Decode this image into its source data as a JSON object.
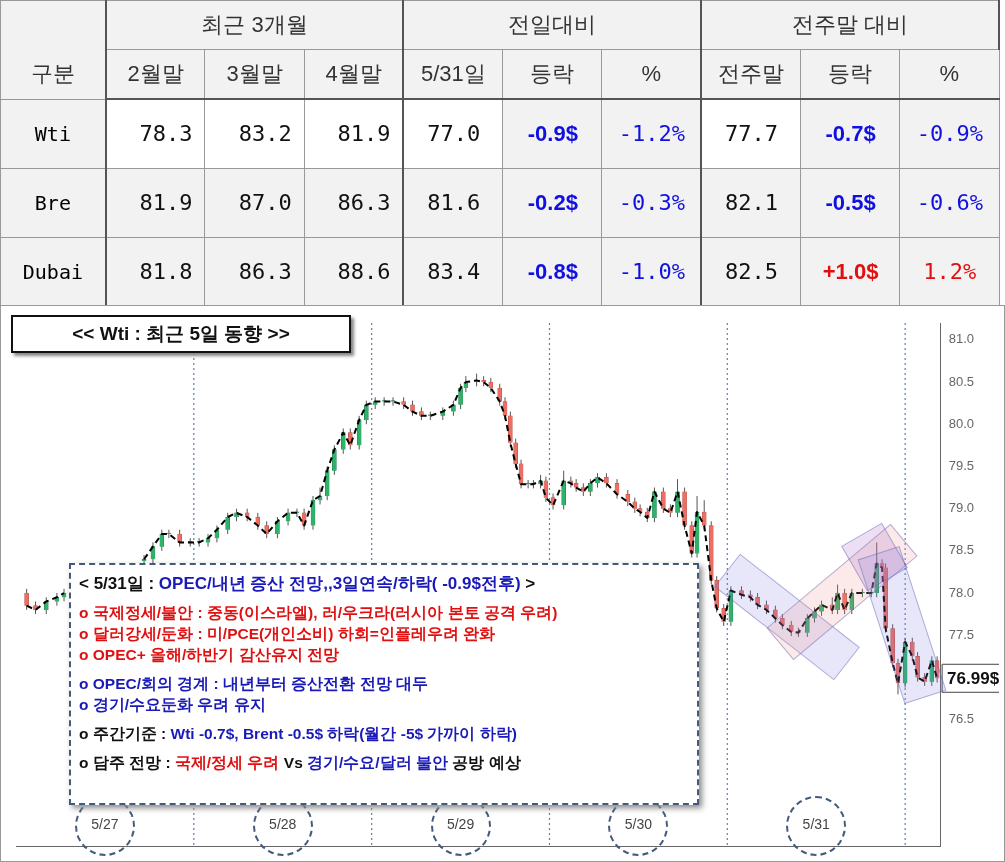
{
  "chart_data": [
    {
      "type": "heatmap",
      "ylabel": "구분",
      "annotations": [
        "최근 3개월",
        "전일대비",
        "전주말 대비"
      ],
      "categories": [
        "2월말",
        "3월말",
        "4월말",
        "5/31일",
        "등락",
        "%",
        "전주말",
        "등락",
        "%"
      ],
      "y_categories": [
        "Wti",
        "Bre",
        "Dubai"
      ],
      "cells": [
        [
          78.3,
          83.2,
          81.9,
          77.0,
          -0.9,
          -1.2,
          77.7,
          -0.7,
          -0.9
        ],
        [
          81.9,
          87.0,
          86.3,
          81.6,
          -0.2,
          -0.3,
          82.1,
          -0.5,
          -0.6
        ],
        [
          81.8,
          86.3,
          88.6,
          83.4,
          -0.8,
          -1.0,
          82.5,
          1.0,
          1.2
        ]
      ],
      "cell_labels": [
        [
          "78.3",
          "83.2",
          "81.9",
          "77.0",
          "-0.9$",
          "-1.2%",
          "77.7",
          "-0.7$",
          "-0.9%"
        ],
        [
          "81.9",
          "87.0",
          "86.3",
          "81.6",
          "-0.2$",
          "-0.3%",
          "82.1",
          "-0.5$",
          "-0.6%"
        ],
        [
          "81.8",
          "86.3",
          "88.6",
          "83.4",
          "-0.8$",
          "-1.0%",
          "82.5",
          "+1.0$",
          "1.2%"
        ]
      ]
    },
    {
      "type": "candlestick",
      "title": "<< Wti : 최근 5일 동향 >>",
      "marker": "none",
      "grid": false,
      "legend": false,
      "xlim": [
        "--05-27T00:00",
        "--06-01T04:48"
      ],
      "xticks": [
        {
          "value": "--05-27T12:00",
          "label": "5/27"
        },
        {
          "value": "--05-28T12:00",
          "label": "5/28"
        },
        {
          "value": "--05-29T12:00",
          "label": "5/29"
        },
        {
          "value": "--05-30T12:00",
          "label": "5/30"
        },
        {
          "value": "--05-31T12:00",
          "label": "5/31"
        }
      ],
      "ylim": [
        75,
        81.2
      ],
      "yticks": [
        {
          "value": 76.5,
          "label": "76.5"
        },
        {
          "value": 77.5,
          "label": "77.5"
        },
        {
          "value": 78,
          "label": "78.0"
        },
        {
          "value": 78.5,
          "label": "78.5"
        },
        {
          "value": 79,
          "label": "79.0"
        },
        {
          "value": 79.5,
          "label": "79.5"
        },
        {
          "value": 80,
          "label": "80.0"
        },
        {
          "value": 80.5,
          "label": "80.5"
        },
        {
          "value": 81,
          "label": "81.0"
        }
      ],
      "x": [
        "--05-27T01:26",
        "--05-27T02:38",
        "--05-27T04:05",
        "--05-27T05:31",
        "--05-27T06:29",
        "--05-27T17:17",
        "--05-27T18:29",
        "--05-27T19:41",
        "--05-27T20:38",
        "--05-27T22:05",
        "--05-27T23:31",
        "--05-28T00:43",
        "--05-28T01:55",
        "--05-28T03:07",
        "--05-28T04:34",
        "--05-28T05:46",
        "--05-28T07:12",
        "--05-28T08:38",
        "--05-28T09:50",
        "--05-28T11:17",
        "--05-28T12:43",
        "--05-28T13:55",
        "--05-28T14:53",
        "--05-28T16:05",
        "--05-28T17:02",
        "--05-28T18:00",
        "--05-28T18:58",
        "--05-28T20:10",
        "--05-28T21:07",
        "--05-28T22:19",
        "--05-28T23:17",
        "--05-29T00:29",
        "--05-29T01:41",
        "--05-29T02:53",
        "--05-29T04:19",
        "--05-29T05:31",
        "--05-29T06:43",
        "--05-29T07:55",
        "--05-29T09:36",
        "--05-29T11:02",
        "--05-29T12:00",
        "--05-29T12:43",
        "--05-29T14:10",
        "--05-29T15:07",
        "--05-29T16:05",
        "--05-29T17:17",
        "--05-29T18:00",
        "--05-29T18:43",
        "--05-29T19:26",
        "--05-29T20:10",
        "--05-29T21:07",
        "--05-29T21:50",
        "--05-29T22:48",
        "--05-29T23:31",
        "--05-30T00:29",
        "--05-30T01:55",
        "--05-30T02:53",
        "--05-30T03:36",
        "--05-30T04:34",
        "--05-30T05:31",
        "--05-30T06:29",
        "--05-30T07:41",
        "--05-30T09:07",
        "--05-30T10:34",
        "--05-30T11:31",
        "--05-30T12:14",
        "--05-30T13:12",
        "--05-30T14:10",
        "--05-30T15:22",
        "--05-30T16:19",
        "--05-30T17:17",
        "--05-30T18:14",
        "--05-30T19:12",
        "--05-30T19:55",
        "--05-30T20:53",
        "--05-30T21:50",
        "--05-30T22:34",
        "--05-30T23:31",
        "--05-31T00:29",
        "--05-31T01:55",
        "--05-31T03:07",
        "--05-31T04:05",
        "--05-31T05:17",
        "--05-31T06:29",
        "--05-31T07:26",
        "--05-31T08:38",
        "--05-31T09:36",
        "--05-31T10:48",
        "--05-31T11:46",
        "--05-31T12:43",
        "--05-31T14:10",
        "--05-31T14:53",
        "--05-31T15:50",
        "--05-31T16:48",
        "--05-31T18:14",
        "--05-31T19:26",
        "--05-31T20:10",
        "--05-31T20:53",
        "--05-31T21:22",
        "--05-31T22:19",
        "--05-31T23:02",
        "--06-01T00:00",
        "--06-01T00:58",
        "--06-01T01:41",
        "--06-01T02:38",
        "--06-01T03:36",
        "--06-01T04:19"
      ],
      "ohlc": [
        [
          78.0,
          78.05,
          77.8,
          77.85
        ],
        [
          77.85,
          77.9,
          77.75,
          77.8
        ],
        [
          77.8,
          77.95,
          77.75,
          77.9
        ],
        [
          77.9,
          78.0,
          77.85,
          77.95
        ],
        [
          77.95,
          78.05,
          77.9,
          78.0
        ],
        [
          78.38,
          78.45,
          78.35,
          78.4
        ],
        [
          78.4,
          78.6,
          78.35,
          78.55
        ],
        [
          78.55,
          78.75,
          78.5,
          78.7
        ],
        [
          78.7,
          78.75,
          78.65,
          78.7
        ],
        [
          78.7,
          78.75,
          78.55,
          78.6
        ],
        [
          78.6,
          78.65,
          78.55,
          78.6
        ],
        [
          78.6,
          78.65,
          78.55,
          78.6
        ],
        [
          78.6,
          78.7,
          78.55,
          78.65
        ],
        [
          78.65,
          78.8,
          78.6,
          78.75
        ],
        [
          78.75,
          78.95,
          78.7,
          78.9
        ],
        [
          78.9,
          79.0,
          78.85,
          78.95
        ],
        [
          78.95,
          79.0,
          78.85,
          78.9
        ],
        [
          78.9,
          78.95,
          78.75,
          78.8
        ],
        [
          78.8,
          78.85,
          78.65,
          78.7
        ],
        [
          78.7,
          78.9,
          78.65,
          78.85
        ],
        [
          78.85,
          79.0,
          78.8,
          78.95
        ],
        [
          78.95,
          79.0,
          78.9,
          78.95
        ],
        [
          78.95,
          79.0,
          78.75,
          78.8
        ],
        [
          78.8,
          79.15,
          78.75,
          79.1
        ],
        [
          79.1,
          79.25,
          79.05,
          79.15
        ],
        [
          79.15,
          79.5,
          79.1,
          79.45
        ],
        [
          79.45,
          79.75,
          79.4,
          79.7
        ],
        [
          79.7,
          79.95,
          79.65,
          79.9
        ],
        [
          79.9,
          79.95,
          79.7,
          79.75
        ],
        [
          79.75,
          80.1,
          79.7,
          80.05
        ],
        [
          80.05,
          80.28,
          80.0,
          80.23
        ],
        [
          80.23,
          80.32,
          80.18,
          80.27
        ],
        [
          80.27,
          80.32,
          80.22,
          80.27
        ],
        [
          80.27,
          80.32,
          80.22,
          80.27
        ],
        [
          80.27,
          80.32,
          80.18,
          80.23
        ],
        [
          80.23,
          80.28,
          80.1,
          80.15
        ],
        [
          80.15,
          80.2,
          80.05,
          80.1
        ],
        [
          80.1,
          80.15,
          80.05,
          80.1
        ],
        [
          80.1,
          80.2,
          80.05,
          80.15
        ],
        [
          80.15,
          80.28,
          80.1,
          80.23
        ],
        [
          80.23,
          80.48,
          80.18,
          80.43
        ],
        [
          80.43,
          80.57,
          80.38,
          80.5
        ],
        [
          80.5,
          80.6,
          80.45,
          80.52
        ],
        [
          80.52,
          80.57,
          80.45,
          80.5
        ],
        [
          80.5,
          80.55,
          80.38,
          80.43
        ],
        [
          80.43,
          80.48,
          80.22,
          80.27
        ],
        [
          80.27,
          80.32,
          80.05,
          80.1
        ],
        [
          80.1,
          80.15,
          79.73,
          79.78
        ],
        [
          79.78,
          79.83,
          79.48,
          79.53
        ],
        [
          79.53,
          79.58,
          79.24,
          79.29
        ],
        [
          79.29,
          79.34,
          79.24,
          79.29
        ],
        [
          79.29,
          79.34,
          79.24,
          79.29
        ],
        [
          79.29,
          79.4,
          79.24,
          79.33
        ],
        [
          79.33,
          79.38,
          79.08,
          79.13
        ],
        [
          79.13,
          79.18,
          78.99,
          79.04
        ],
        [
          79.04,
          79.45,
          78.99,
          79.33
        ],
        [
          79.33,
          79.38,
          79.25,
          79.3
        ],
        [
          79.3,
          79.35,
          79.2,
          79.25
        ],
        [
          79.25,
          79.3,
          79.15,
          79.2
        ],
        [
          79.2,
          79.35,
          79.15,
          79.3
        ],
        [
          79.3,
          79.42,
          79.25,
          79.37
        ],
        [
          79.37,
          79.42,
          79.25,
          79.3
        ],
        [
          79.3,
          79.35,
          79.12,
          79.17
        ],
        [
          79.17,
          79.22,
          79.03,
          79.08
        ],
        [
          79.08,
          79.13,
          78.95,
          79.0
        ],
        [
          79.0,
          79.05,
          78.91,
          78.96
        ],
        [
          78.96,
          79.01,
          78.84,
          78.89
        ],
        [
          78.89,
          79.25,
          78.84,
          79.2
        ],
        [
          79.2,
          79.25,
          78.95,
          79.0
        ],
        [
          79.0,
          79.05,
          78.9,
          78.95
        ],
        [
          78.95,
          79.35,
          78.9,
          79.2
        ],
        [
          79.2,
          79.25,
          78.75,
          78.8
        ],
        [
          78.8,
          78.85,
          78.42,
          78.47
        ],
        [
          78.47,
          79.15,
          78.42,
          78.96
        ],
        [
          78.96,
          79.1,
          78.75,
          78.8
        ],
        [
          78.8,
          78.85,
          78.1,
          78.15
        ],
        [
          78.15,
          78.2,
          77.77,
          77.82
        ],
        [
          77.82,
          77.87,
          77.61,
          77.66
        ],
        [
          77.66,
          78.08,
          77.61,
          78.03
        ],
        [
          78.03,
          78.08,
          77.93,
          77.98
        ],
        [
          77.98,
          78.03,
          77.9,
          77.95
        ],
        [
          77.95,
          78.0,
          77.81,
          77.86
        ],
        [
          77.86,
          77.91,
          77.75,
          77.8
        ],
        [
          77.8,
          77.85,
          77.65,
          77.7
        ],
        [
          77.7,
          77.75,
          77.57,
          77.62
        ],
        [
          77.62,
          77.67,
          77.49,
          77.54
        ],
        [
          77.54,
          77.59,
          77.48,
          77.53
        ],
        [
          77.53,
          77.75,
          77.48,
          77.7
        ],
        [
          77.7,
          77.83,
          77.65,
          77.78
        ],
        [
          77.78,
          77.91,
          77.73,
          77.86
        ],
        [
          77.86,
          77.95,
          77.75,
          77.8
        ],
        [
          77.8,
          78.1,
          77.75,
          78.0
        ],
        [
          78.0,
          78.05,
          77.75,
          77.8
        ],
        [
          77.8,
          78.05,
          77.75,
          78.0
        ],
        [
          78.0,
          78.05,
          77.95,
          78.0
        ],
        [
          78.0,
          78.05,
          77.95,
          78.0
        ],
        [
          78.0,
          78.6,
          77.95,
          78.35
        ],
        [
          78.35,
          78.4,
          78.25,
          78.3
        ],
        [
          78.3,
          78.35,
          77.53,
          77.58
        ],
        [
          77.58,
          77.63,
          77.12,
          77.17
        ],
        [
          77.17,
          77.22,
          76.8,
          76.93
        ],
        [
          76.93,
          77.47,
          76.88,
          77.42
        ],
        [
          77.42,
          77.47,
          77.2,
          77.25
        ],
        [
          77.25,
          77.3,
          76.95,
          77.0
        ],
        [
          77.0,
          77.05,
          76.9,
          76.95
        ],
        [
          76.95,
          77.25,
          76.9,
          77.2
        ],
        [
          77.2,
          77.25,
          76.94,
          76.99
        ]
      ],
      "series": [
        {
          "type": "line",
          "color": "#000000",
          "line_style": "dashed",
          "x": [
            "--05-27T01:26",
            "--05-27T02:38",
            "--05-27T04:05",
            "--05-27T05:31",
            "--05-27T06:29",
            "--05-27T10:48",
            "--05-27T17:17",
            "--05-27T18:29",
            "--05-27T19:41",
            "--05-27T20:38",
            "--05-27T22:05",
            "--05-27T23:31",
            "--05-28T00:43",
            "--05-28T01:55",
            "--05-28T03:07",
            "--05-28T04:34",
            "--05-28T05:46",
            "--05-28T07:12",
            "--05-28T08:38",
            "--05-28T09:50",
            "--05-28T11:17",
            "--05-28T12:43",
            "--05-28T13:55",
            "--05-28T14:53",
            "--05-28T16:05",
            "--05-28T17:02",
            "--05-28T18:00",
            "--05-28T18:58",
            "--05-28T20:10",
            "--05-28T21:07",
            "--05-28T22:19",
            "--05-28T23:17",
            "--05-29T00:29",
            "--05-29T01:41",
            "--05-29T02:53",
            "--05-29T04:19",
            "--05-29T05:31",
            "--05-29T06:43",
            "--05-29T07:55",
            "--05-29T09:36",
            "--05-29T11:02",
            "--05-29T12:00",
            "--05-29T12:43",
            "--05-29T14:10",
            "--05-29T15:07",
            "--05-29T16:05",
            "--05-29T17:17",
            "--05-29T18:00",
            "--05-29T18:43",
            "--05-29T19:26",
            "--05-29T20:10",
            "--05-29T21:07",
            "--05-29T21:50",
            "--05-29T22:48",
            "--05-29T23:31",
            "--05-30T00:29",
            "--05-30T01:55",
            "--05-30T02:53",
            "--05-30T03:36",
            "--05-30T04:34",
            "--05-30T05:31",
            "--05-30T06:29",
            "--05-30T07:41",
            "--05-30T09:07",
            "--05-30T10:34",
            "--05-30T11:31",
            "--05-30T12:14",
            "--05-30T13:12",
            "--05-30T14:10",
            "--05-30T15:22",
            "--05-30T16:19",
            "--05-30T17:17",
            "--05-30T18:14",
            "--05-30T19:12",
            "--05-30T19:55",
            "--05-30T20:53",
            "--05-30T21:50",
            "--05-30T22:34",
            "--05-30T23:31",
            "--05-31T00:29",
            "--05-31T01:55",
            "--05-31T03:07",
            "--05-31T04:05",
            "--05-31T05:17",
            "--05-31T06:29",
            "--05-31T07:26",
            "--05-31T08:38",
            "--05-31T09:36",
            "--05-31T10:48",
            "--05-31T11:46",
            "--05-31T12:43",
            "--05-31T14:10",
            "--05-31T14:53",
            "--05-31T15:50",
            "--05-31T16:48",
            "--05-31T18:14",
            "--05-31T19:26",
            "--05-31T20:10",
            "--05-31T20:53",
            "--05-31T21:22",
            "--05-31T22:19",
            "--05-31T23:02",
            "--06-01T00:00",
            "--06-01T00:58",
            "--06-01T01:41",
            "--06-01T02:38",
            "--06-01T03:36",
            "--06-01T04:19"
          ],
          "values": [
            77.85,
            77.8,
            77.9,
            77.95,
            78.0,
            null,
            78.4,
            78.55,
            78.7,
            78.7,
            78.6,
            78.6,
            78.6,
            78.65,
            78.75,
            78.9,
            78.95,
            78.9,
            78.8,
            78.7,
            78.85,
            78.95,
            78.95,
            78.8,
            79.1,
            79.15,
            79.45,
            79.7,
            79.9,
            79.75,
            80.05,
            80.23,
            80.27,
            80.27,
            80.27,
            80.23,
            80.15,
            80.1,
            80.1,
            80.15,
            80.23,
            80.43,
            80.5,
            80.52,
            80.5,
            80.43,
            80.27,
            80.1,
            79.78,
            79.53,
            79.29,
            79.29,
            79.29,
            79.33,
            79.13,
            79.04,
            79.33,
            79.3,
            79.25,
            79.2,
            79.3,
            79.37,
            79.3,
            79.17,
            79.08,
            79.0,
            78.96,
            78.89,
            79.2,
            79.0,
            78.95,
            79.2,
            78.8,
            78.47,
            78.96,
            78.8,
            78.15,
            77.82,
            77.66,
            78.03,
            77.98,
            77.95,
            77.86,
            77.8,
            77.7,
            77.62,
            77.54,
            77.53,
            77.7,
            77.78,
            77.86,
            77.8,
            78.0,
            77.8,
            78.0,
            78.0,
            78.0,
            78.35,
            78.3,
            77.58,
            77.17,
            76.93,
            77.42,
            77.25,
            77.0,
            76.95,
            77.2,
            76.99
          ]
        }
      ],
      "ref_lines": [
        {
          "axis": "x",
          "value": "--05-28T00:00",
          "color": "#5b7fb5",
          "line_style": "dotted"
        },
        {
          "axis": "x",
          "value": "--05-29T00:00",
          "color": "#5b7fb5",
          "line_style": "dotted"
        },
        {
          "axis": "x",
          "value": "--05-30T00:00",
          "color": "#5b7fb5",
          "line_style": "dotted"
        },
        {
          "axis": "x",
          "value": "--05-31T00:00",
          "color": "#5b7fb5",
          "line_style": "dotted"
        },
        {
          "axis": "x",
          "value": "--06-01T00:00",
          "color": "#5b7fb5",
          "line_style": "dotted"
        }
      ],
      "annotations": [
        "< 5/31일 :",
        "OPEC/내년 증산 전망,,3일연속/하락( -0.9$전후)",
        ">",
        "o 국제정세/불안 : 중동(이스라엘), 러/우크라(러시아 본토 공격 우려)",
        "o 달러강세/둔화 : 미/PCE(개인소비) 하회=인플레우려 완화",
        "o OPEC+ 올해/하반기 감산유지 전망",
        "o OPEC/회의 경계 : 내년부터 증산전환 전망 대두",
        "o 경기/수요둔화 우려 유지",
        "o 주간기준 :",
        "Wti -0.7$, Brent -0.5$ 하락(월간 -5$ 가까이 하락)",
        "o 담주 전망 :",
        "국제/정세 우려",
        "Vs",
        "경기/수요/달러 불안",
        "공방 예상",
        {
          "text": "76.99$",
          "x": "--06-01T04:19",
          "y": 76.99
        }
      ]
    }
  ]
}
